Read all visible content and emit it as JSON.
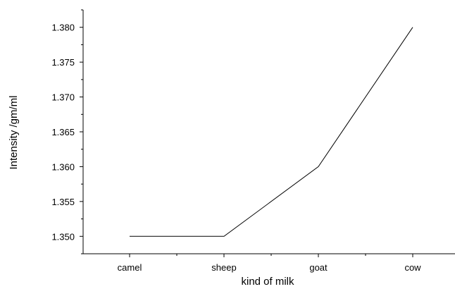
{
  "chart_data": {
    "type": "line",
    "title": "",
    "xlabel": "kind of milk",
    "ylabel": "Intensity /gm/ml",
    "categories": [
      "camel",
      "sheep",
      "goat",
      "cow"
    ],
    "series": [
      {
        "values": [
          1.35,
          1.35,
          1.36,
          1.38
        ]
      }
    ],
    "ylim": [
      1.3475,
      1.3825
    ],
    "yticks": [
      "1.350",
      "1.355",
      "1.360",
      "1.365",
      "1.370",
      "1.375",
      "1.380"
    ],
    "grid": false,
    "legend": "none",
    "line_color": "#000000"
  }
}
